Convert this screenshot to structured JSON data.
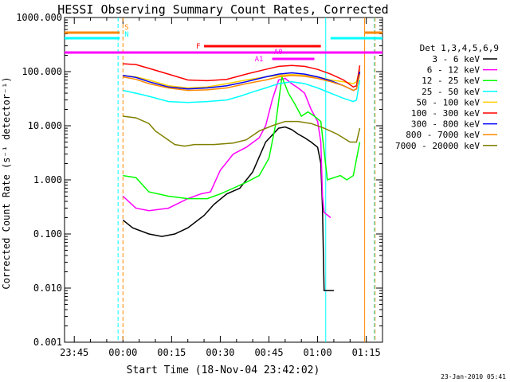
{
  "chart_data": {
    "type": "line",
    "title": "HESSI Observing Summary Count Rates, Corrected",
    "xlabel": "Start Time (18-Nov-04 23:42:02)",
    "ylabel": "Corrected Count Rate (s⁻¹ detector⁻¹)",
    "y_scale": "log",
    "ylim": [
      0.001,
      1000
    ],
    "y_ticks": [
      "1000.000",
      "100.000",
      "10.000",
      "1.000",
      "0.100",
      "0.010",
      "0.001"
    ],
    "x_ticks": [
      "23:45",
      "00:00",
      "00:15",
      "00:30",
      "00:45",
      "01:00",
      "01:15"
    ],
    "x_tick_minutes": [
      -15,
      0,
      15,
      30,
      45,
      60,
      75
    ],
    "xlim_minutes": [
      -18,
      80
    ],
    "x_units": "minutes from 00:00 (19-Nov-04)",
    "legend_title": "Det 1,3,4,5,6,9",
    "legend_position": "right",
    "timestamp": "23-Jan-2010 05:41",
    "series": [
      {
        "name": "3 - 6 keV",
        "color": "#000000",
        "x": [
          0,
          3,
          8,
          12,
          16,
          20,
          25,
          28,
          32,
          36,
          40,
          44,
          48,
          50,
          52,
          54,
          56,
          58,
          60,
          61,
          61.5,
          62,
          65
        ],
        "y": [
          0.18,
          0.13,
          0.1,
          0.09,
          0.1,
          0.13,
          0.22,
          0.35,
          0.55,
          0.7,
          1.4,
          5,
          9,
          9.5,
          8.5,
          7,
          6,
          5,
          4,
          2,
          0.3,
          0.009,
          0.009
        ]
      },
      {
        "name": "6 - 12 keV",
        "color": "#ff00ff",
        "x": [
          0,
          4,
          8,
          14,
          20,
          24,
          27,
          30,
          34,
          38,
          42,
          44,
          46,
          48,
          50,
          52,
          54,
          56,
          58,
          60,
          61,
          61.5,
          62,
          64
        ],
        "y": [
          0.5,
          0.3,
          0.27,
          0.3,
          0.45,
          0.55,
          0.6,
          1.5,
          3,
          4,
          6,
          10,
          30,
          70,
          75,
          60,
          50,
          40,
          20,
          12,
          5,
          0.5,
          0.25,
          0.2
        ]
      },
      {
        "name": "12 - 25 keV",
        "color": "#00ff00",
        "x": [
          0,
          4,
          8,
          14,
          20,
          26,
          30,
          34,
          38,
          42,
          45,
          47,
          49,
          51,
          53,
          55,
          57,
          59,
          61,
          63,
          67,
          69,
          71,
          73
        ],
        "y": [
          1.2,
          1.1,
          0.6,
          0.5,
          0.45,
          0.45,
          0.55,
          0.7,
          0.9,
          1.2,
          2.5,
          10,
          80,
          40,
          25,
          15,
          18,
          15,
          12,
          1.0,
          1.2,
          1.0,
          1.2,
          5
        ]
      },
      {
        "name": "25 - 50 keV",
        "color": "#00ffff",
        "x": [
          0,
          4,
          8,
          14,
          20,
          26,
          32,
          36,
          40,
          44,
          48,
          52,
          56,
          60,
          64,
          68,
          71,
          72,
          73
        ],
        "y": [
          45,
          40,
          35,
          28,
          27,
          28,
          30,
          35,
          42,
          50,
          60,
          65,
          60,
          50,
          40,
          32,
          28,
          30,
          70
        ]
      },
      {
        "name": "50 - 100 keV",
        "color": "#ffcc00",
        "x": [
          0,
          4,
          8,
          14,
          20,
          26,
          32,
          38,
          44,
          48,
          52,
          56,
          60,
          64,
          68,
          71,
          72,
          73
        ],
        "y": [
          85,
          80,
          70,
          55,
          50,
          52,
          60,
          70,
          80,
          85,
          88,
          85,
          80,
          70,
          65,
          60,
          65,
          110
        ]
      },
      {
        "name": "100 - 300 keV",
        "color": "#ff0000",
        "x": [
          0,
          4,
          8,
          14,
          20,
          26,
          32,
          38,
          44,
          48,
          52,
          56,
          60,
          64,
          68,
          71,
          72,
          73
        ],
        "y": [
          140,
          135,
          115,
          90,
          70,
          68,
          72,
          90,
          110,
          125,
          130,
          125,
          110,
          90,
          70,
          52,
          55,
          130
        ]
      },
      {
        "name": "300 - 800 keV",
        "color": "#0000ff",
        "x": [
          0,
          4,
          8,
          14,
          20,
          26,
          32,
          38,
          44,
          48,
          52,
          56,
          60,
          64,
          68,
          71,
          72,
          73
        ],
        "y": [
          85,
          78,
          65,
          52,
          48,
          50,
          55,
          65,
          80,
          90,
          95,
          90,
          80,
          68,
          55,
          45,
          48,
          100
        ]
      },
      {
        "name": "800 - 7000 keV",
        "color": "#ff8800",
        "x": [
          0,
          4,
          8,
          14,
          20,
          26,
          32,
          38,
          44,
          48,
          52,
          56,
          60,
          64,
          68,
          71,
          72,
          73
        ],
        "y": [
          80,
          72,
          60,
          50,
          45,
          46,
          50,
          60,
          70,
          80,
          85,
          82,
          75,
          65,
          55,
          45,
          48,
          90
        ]
      },
      {
        "name": "7000 - 20000 keV",
        "color": "#808000",
        "x": [
          0,
          4,
          8,
          10,
          13,
          16,
          19,
          22,
          28,
          34,
          38,
          42,
          46,
          50,
          54,
          58,
          62,
          66,
          70,
          72,
          73
        ],
        "y": [
          15,
          14,
          11,
          8,
          6,
          4.5,
          4.2,
          4.5,
          4.5,
          4.8,
          5.5,
          8,
          10,
          12,
          12,
          11,
          9,
          7,
          5,
          5,
          9
        ]
      }
    ],
    "flag_bars": [
      {
        "label": "S",
        "color": "#ff8800",
        "segments": [
          [
            -18,
            -1
          ],
          [
            74.5,
            80
          ]
        ]
      },
      {
        "label": "N",
        "color": "#00ffff",
        "segments": [
          [
            -18,
            -1
          ],
          [
            64,
            80
          ]
        ]
      },
      {
        "label": "F",
        "color": "#ff0000",
        "segments": [
          [
            25,
            61
          ]
        ]
      },
      {
        "label": "",
        "color": "#ff00ff",
        "segments": [
          [
            -18,
            80
          ]
        ]
      },
      {
        "label": "A0",
        "color": "#ff00ff",
        "segments": [
          [
            49,
            59
          ]
        ]
      },
      {
        "label": "A1",
        "color": "#ff00ff",
        "segments": [
          [
            46,
            59
          ]
        ]
      }
    ],
    "vertical_lines": [
      {
        "color": "#00ffff",
        "style": "dashed",
        "x": -1.5
      },
      {
        "color": "#ff8800",
        "style": "dashed",
        "x": 0
      },
      {
        "color": "#00ffff",
        "style": "solid",
        "x": 62.5
      },
      {
        "color": "#ff8800",
        "style": "solid",
        "x": 74.5
      },
      {
        "color": "#00ffff",
        "style": "dashed",
        "x": 77.5
      },
      {
        "color": "#ff8800",
        "style": "dashed",
        "x": 77.7
      }
    ]
  }
}
